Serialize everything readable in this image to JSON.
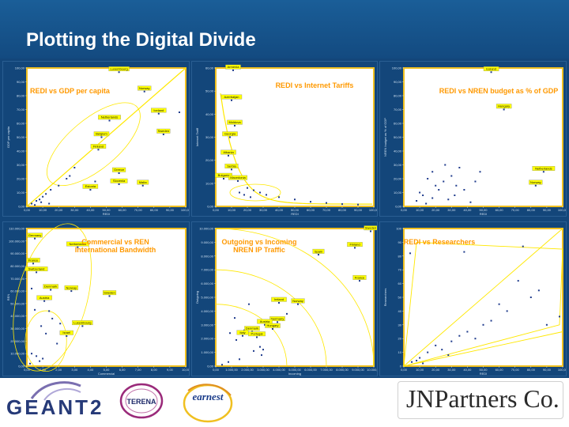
{
  "slide": {
    "title": "Plotting the Digital Divide"
  },
  "logos": {
    "geant": "GEANT2",
    "terena": "TERENA",
    "earnest": "earnest",
    "company": "JNPartners Co."
  },
  "colors": {
    "header": "#1a5e98",
    "panel_bg": "#13467a",
    "plot_bg": "#ffffff",
    "frame": "#f0c020",
    "trend": "#ffe800",
    "title_text": "#ff9900",
    "point": "#1f3b8c",
    "label_box": "#ffff00"
  },
  "chart_data": [
    {
      "id": "redi-gdp",
      "type": "scatter",
      "title": "REDI vs GDP per capita",
      "xlabel": "REDI",
      "ylabel": "GDP per capita",
      "xlim": [
        0,
        100
      ],
      "ylim": [
        0,
        100
      ],
      "xticks": [
        "0,00",
        "10,00",
        "20,00",
        "30,00",
        "40,00",
        "50,00",
        "60,00",
        "70,00",
        "80,00",
        "90,00",
        "100,00"
      ],
      "yticks": [
        "0,00",
        "10,00",
        "20,00",
        "30,00",
        "40,00",
        "50,00",
        "60,00",
        "70,00",
        "80,00",
        "90,00",
        "100,00"
      ],
      "trend": {
        "kind": "line",
        "from": [
          0,
          0
        ],
        "to": [
          100,
          100
        ]
      },
      "points": [
        [
          58,
          97
        ],
        [
          74,
          83
        ],
        [
          96,
          68
        ],
        [
          83,
          67
        ],
        [
          52,
          62
        ],
        [
          47,
          50
        ],
        [
          86,
          52
        ],
        [
          45,
          41
        ],
        [
          58,
          24
        ],
        [
          43,
          18
        ],
        [
          58,
          16
        ],
        [
          73,
          15
        ],
        [
          40,
          12
        ],
        [
          3,
          2
        ],
        [
          6,
          4
        ],
        [
          8,
          5
        ],
        [
          10,
          7
        ],
        [
          12,
          9
        ],
        [
          15,
          12
        ],
        [
          20,
          15
        ],
        [
          25,
          20
        ],
        [
          27,
          22
        ],
        [
          30,
          28
        ],
        [
          5,
          1
        ],
        [
          9,
          3
        ],
        [
          14,
          2
        ]
      ],
      "labels": [
        {
          "text": "Luxembourg",
          "at": [
            58,
            97
          ]
        },
        {
          "text": "Norway",
          "at": [
            74,
            83
          ]
        },
        {
          "text": "Iceland",
          "at": [
            83,
            67
          ]
        },
        {
          "text": "Netherlands",
          "at": [
            52,
            62
          ]
        },
        {
          "text": "Sweden",
          "at": [
            86,
            52
          ]
        },
        {
          "text": "Belgium",
          "at": [
            47,
            50
          ]
        },
        {
          "text": "Finland",
          "at": [
            45,
            41
          ]
        },
        {
          "text": "Greece",
          "at": [
            58,
            24
          ]
        },
        {
          "text": "Slovenia",
          "at": [
            58,
            16
          ]
        },
        {
          "text": "Malta",
          "at": [
            73,
            15
          ]
        },
        {
          "text": "Estonia",
          "at": [
            40,
            12
          ]
        }
      ]
    },
    {
      "id": "redi-tariffs",
      "type": "scatter",
      "title": "REDI vs Internet Tariffs",
      "xlabel": "REDI",
      "ylabel": "Internet Tariff",
      "xlim": [
        0,
        100
      ],
      "ylim": [
        0,
        60
      ],
      "xticks": [
        "0,00",
        "10,00",
        "20,00",
        "30,00",
        "40,00",
        "50,00",
        "60,00",
        "70,00",
        "80,00",
        "90,00",
        "100,00"
      ],
      "yticks": [
        "0,00",
        "10,00",
        "20,00",
        "30,00",
        "40,00",
        "50,00",
        "60,00"
      ],
      "trend": {
        "kind": "decay"
      },
      "points": [
        [
          11,
          59
        ],
        [
          10,
          46
        ],
        [
          12,
          35
        ],
        [
          9,
          30
        ],
        [
          8,
          22
        ],
        [
          10,
          16
        ],
        [
          5,
          12
        ],
        [
          14,
          11
        ],
        [
          20,
          8
        ],
        [
          24,
          7
        ],
        [
          28,
          6
        ],
        [
          32,
          5
        ],
        [
          40,
          4
        ],
        [
          50,
          3
        ],
        [
          60,
          2
        ],
        [
          70,
          1.5
        ],
        [
          80,
          1
        ],
        [
          90,
          0.8
        ],
        [
          15,
          6
        ],
        [
          18,
          5
        ],
        [
          22,
          4
        ]
      ],
      "labels": [
        {
          "text": "Armenia",
          "at": [
            11,
            59
          ]
        },
        {
          "text": "Azerbaijan",
          "at": [
            10,
            46
          ]
        },
        {
          "text": "Moldova",
          "at": [
            12,
            35
          ]
        },
        {
          "text": "Georgia",
          "at": [
            9,
            30
          ]
        },
        {
          "text": "Albania",
          "at": [
            8,
            22
          ]
        },
        {
          "text": "Serbia",
          "at": [
            10,
            16
          ]
        },
        {
          "text": "Bulgaria",
          "at": [
            5,
            12
          ]
        },
        {
          "text": "Macedonia",
          "at": [
            14,
            11
          ]
        }
      ]
    },
    {
      "id": "redi-nren",
      "type": "scatter",
      "title": "REDI vs NREN budget as % of GDP",
      "xlabel": "REDI",
      "ylabel": "NREN budget as % of GDP",
      "xlim": [
        0,
        100
      ],
      "ylim": [
        0,
        100
      ],
      "xticks": [
        "0,00",
        "10,00",
        "20,00",
        "30,00",
        "40,00",
        "50,00",
        "60,00",
        "70,00",
        "80,00",
        "90,00",
        "100,00"
      ],
      "yticks": [
        "0,00",
        "10,00",
        "20,00",
        "30,00",
        "40,00",
        "50,00",
        "60,00",
        "70,00",
        "80,00",
        "90,00",
        "100,00"
      ],
      "trend": {
        "kind": "none"
      },
      "points": [
        [
          55,
          97
        ],
        [
          63,
          70
        ],
        [
          88,
          25
        ],
        [
          83,
          15
        ],
        [
          8,
          4
        ],
        [
          12,
          8
        ],
        [
          18,
          6
        ],
        [
          22,
          12
        ],
        [
          25,
          18
        ],
        [
          30,
          22
        ],
        [
          35,
          28
        ],
        [
          20,
          15
        ],
        [
          15,
          20
        ],
        [
          10,
          10
        ],
        [
          28,
          5
        ],
        [
          32,
          8
        ],
        [
          38,
          12
        ],
        [
          42,
          3
        ],
        [
          45,
          18
        ],
        [
          48,
          25
        ],
        [
          26,
          30
        ],
        [
          14,
          2
        ],
        [
          18,
          25
        ],
        [
          33,
          15
        ]
      ],
      "labels": [
        {
          "text": "Iceland",
          "at": [
            55,
            97
          ]
        },
        {
          "text": "Hungary",
          "at": [
            63,
            70
          ]
        },
        {
          "text": "Netherlands",
          "at": [
            88,
            25
          ]
        },
        {
          "text": "Norway",
          "at": [
            83,
            15
          ]
        }
      ]
    },
    {
      "id": "commercial-ren",
      "type": "scatter",
      "title": "Commercial vs REN International Bandwidth",
      "xlabel": "Commercial",
      "ylabel": "REN",
      "xlim": [
        0,
        10
      ],
      "ylim": [
        0,
        110000
      ],
      "xticks": [
        "0,00",
        "1,00",
        "2,00",
        "3,00",
        "4,00",
        "5,00",
        "6,00",
        "7,00",
        "8,00",
        "9,00",
        "10,00"
      ],
      "yticks": [
        "0,00",
        "10.000,00",
        "20.000,00",
        "30.000,00",
        "40.000,00",
        "50.000,00",
        "60.000,00",
        "70.000,00",
        "80.000,00",
        "90.000,00",
        "100.000,00",
        "110.000,00"
      ],
      "trend": {
        "kind": "ellipses"
      },
      "points": [
        [
          0.5,
          102000
        ],
        [
          3.2,
          95000
        ],
        [
          0.4,
          82000
        ],
        [
          0.6,
          75000
        ],
        [
          0.3,
          62000
        ],
        [
          1.5,
          61000
        ],
        [
          2.8,
          60000
        ],
        [
          5.2,
          56000
        ],
        [
          1.1,
          52000
        ],
        [
          0.5,
          45000
        ],
        [
          1.4,
          44000
        ],
        [
          1.6,
          38000
        ],
        [
          2.1,
          34000
        ],
        [
          0.9,
          32000
        ],
        [
          3.5,
          32000
        ],
        [
          1.2,
          26000
        ],
        [
          2.5,
          24000
        ],
        [
          1.9,
          18000
        ],
        [
          0.3,
          10000
        ],
        [
          0.6,
          8000
        ],
        [
          0.8,
          4000
        ],
        [
          1.0,
          6000
        ],
        [
          0.2,
          2000
        ]
      ],
      "labels": [
        {
          "text": "Germany",
          "at": [
            0.5,
            102000
          ]
        },
        {
          "text": "Netherlands",
          "at": [
            3.2,
            95000
          ]
        },
        {
          "text": "France",
          "at": [
            0.4,
            82000
          ]
        },
        {
          "text": "Switzerland",
          "at": [
            0.6,
            75000
          ]
        },
        {
          "text": "Denmark",
          "at": [
            1.5,
            61000
          ]
        },
        {
          "text": "Norway",
          "at": [
            2.8,
            60000
          ]
        },
        {
          "text": "Sweden",
          "at": [
            5.2,
            56000
          ]
        },
        {
          "text": "Austria",
          "at": [
            1.1,
            52000
          ]
        },
        {
          "text": "Luxembourg",
          "at": [
            3.5,
            32000
          ]
        },
        {
          "text": "Israel",
          "at": [
            2.5,
            24000
          ]
        }
      ]
    },
    {
      "id": "outgoing-incoming",
      "type": "scatter",
      "title": "Outgoing vs Incoming NREN IP Traffic",
      "xlabel": "Incoming",
      "ylabel": "Outgoing",
      "xlim": [
        0,
        10000
      ],
      "ylim": [
        0,
        10000
      ],
      "xticks": [
        "0,00",
        "1.000,00",
        "2.000,00",
        "3.000,00",
        "4.000,00",
        "5.000,00",
        "6.000,00",
        "7.000,00",
        "8.000,00",
        "9.000,00",
        "10.000,00"
      ],
      "yticks": [
        "0,00",
        "1.000,00",
        "2.000,00",
        "3.000,00",
        "4.000,00",
        "5.000,00",
        "6.000,00",
        "7.000,00",
        "8.000,00",
        "9.000,00",
        "10.000,00"
      ],
      "trend": {
        "kind": "arcs"
      },
      "points": [
        [
          9800,
          9800
        ],
        [
          8800,
          8600
        ],
        [
          6500,
          8100
        ],
        [
          9100,
          6200
        ],
        [
          2100,
          4500
        ],
        [
          4000,
          4600
        ],
        [
          5200,
          4500
        ],
        [
          4500,
          3800
        ],
        [
          1200,
          3500
        ],
        [
          3900,
          3200
        ],
        [
          3100,
          3000
        ],
        [
          3600,
          2700
        ],
        [
          1800,
          2600
        ],
        [
          2300,
          2500
        ],
        [
          900,
          2400
        ],
        [
          1700,
          2200
        ],
        [
          2600,
          2100
        ],
        [
          1300,
          1900
        ],
        [
          2800,
          1400
        ],
        [
          3000,
          1200
        ],
        [
          2400,
          1100
        ],
        [
          2900,
          800
        ],
        [
          1500,
          500
        ],
        [
          800,
          300
        ],
        [
          400,
          100
        ]
      ],
      "labels": [
        {
          "text": "Sweden",
          "at": [
            9800,
            9800
          ]
        },
        {
          "text": "Finland",
          "at": [
            8800,
            8600
          ]
        },
        {
          "text": "Spain",
          "at": [
            6500,
            8100
          ]
        },
        {
          "text": "France",
          "at": [
            9100,
            6200
          ]
        },
        {
          "text": "Norway",
          "at": [
            5200,
            4500
          ]
        },
        {
          "text": "Ireland",
          "at": [
            4000,
            4600
          ]
        },
        {
          "text": "Germany",
          "at": [
            3900,
            3200
          ]
        },
        {
          "text": "Austria",
          "at": [
            3100,
            3000
          ]
        },
        {
          "text": "Hungary",
          "at": [
            3600,
            2700
          ]
        },
        {
          "text": "Denmark",
          "at": [
            2300,
            2500
          ]
        },
        {
          "text": "Italy",
          "at": [
            1700,
            2200
          ]
        },
        {
          "text": "Portugal",
          "at": [
            2600,
            2100
          ]
        }
      ]
    },
    {
      "id": "redi-researchers",
      "type": "scatter",
      "title": "REDI vs Researchers",
      "xlabel": "REDI",
      "ylabel": "Researchers",
      "xlim": [
        0,
        100
      ],
      "ylim": [
        0,
        100
      ],
      "xticks": [
        "0,00",
        "10,00",
        "20,00",
        "30,00",
        "40,00",
        "50,00",
        "60,00",
        "70,00",
        "80,00",
        "90,00",
        "100,00"
      ],
      "yticks": [
        "0",
        "10",
        "20",
        "30",
        "40",
        "50",
        "60",
        "70",
        "80",
        "90",
        "100"
      ],
      "trend": {
        "kind": "wedge"
      },
      "points": [
        [
          4,
          82
        ],
        [
          38,
          83
        ],
        [
          75,
          87
        ],
        [
          98,
          36
        ],
        [
          72,
          62
        ],
        [
          60,
          45
        ],
        [
          55,
          33
        ],
        [
          50,
          30
        ],
        [
          40,
          25
        ],
        [
          35,
          22
        ],
        [
          30,
          18
        ],
        [
          24,
          12
        ],
        [
          20,
          15
        ],
        [
          15,
          10
        ],
        [
          10,
          6
        ],
        [
          8,
          4
        ],
        [
          5,
          3
        ],
        [
          12,
          2
        ],
        [
          28,
          8
        ],
        [
          45,
          20
        ],
        [
          65,
          40
        ],
        [
          80,
          50
        ],
        [
          85,
          55
        ],
        [
          90,
          30
        ]
      ],
      "labels": []
    }
  ]
}
